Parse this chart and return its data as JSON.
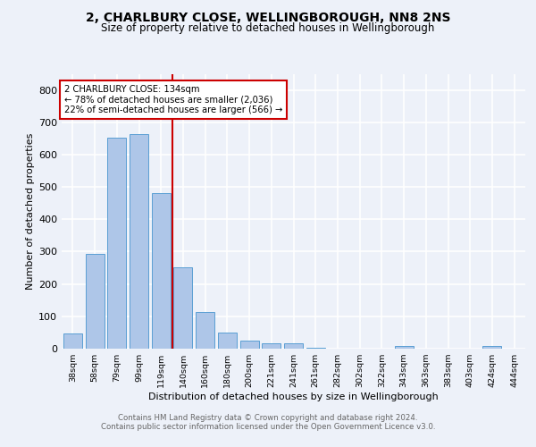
{
  "title1": "2, CHARLBURY CLOSE, WELLINGBOROUGH, NN8 2NS",
  "title2": "Size of property relative to detached houses in Wellingborough",
  "xlabel": "Distribution of detached houses by size in Wellingborough",
  "ylabel": "Number of detached properties",
  "bar_labels": [
    "38sqm",
    "58sqm",
    "79sqm",
    "99sqm",
    "119sqm",
    "140sqm",
    "160sqm",
    "180sqm",
    "200sqm",
    "221sqm",
    "241sqm",
    "261sqm",
    "282sqm",
    "302sqm",
    "322sqm",
    "343sqm",
    "363sqm",
    "383sqm",
    "403sqm",
    "424sqm",
    "444sqm"
  ],
  "bar_values": [
    46,
    294,
    651,
    663,
    480,
    252,
    113,
    50,
    26,
    17,
    16,
    4,
    1,
    0,
    0,
    7,
    0,
    0,
    0,
    8,
    0
  ],
  "bar_color": "#aec6e8",
  "bar_edge_color": "#5a9fd4",
  "property_line_label": "2 CHARLBURY CLOSE: 134sqm",
  "annotation_line1": "← 78% of detached houses are smaller (2,036)",
  "annotation_line2": "22% of semi-detached houses are larger (566) →",
  "red_line_color": "#cc0000",
  "annotation_box_color": "#ffffff",
  "annotation_box_edge": "#cc0000",
  "ylim": [
    0,
    850
  ],
  "yticks": [
    0,
    100,
    200,
    300,
    400,
    500,
    600,
    700,
    800
  ],
  "footer1": "Contains HM Land Registry data © Crown copyright and database right 2024.",
  "footer2": "Contains public sector information licensed under the Open Government Licence v3.0.",
  "bg_color": "#edf1f9",
  "grid_color": "#ffffff"
}
